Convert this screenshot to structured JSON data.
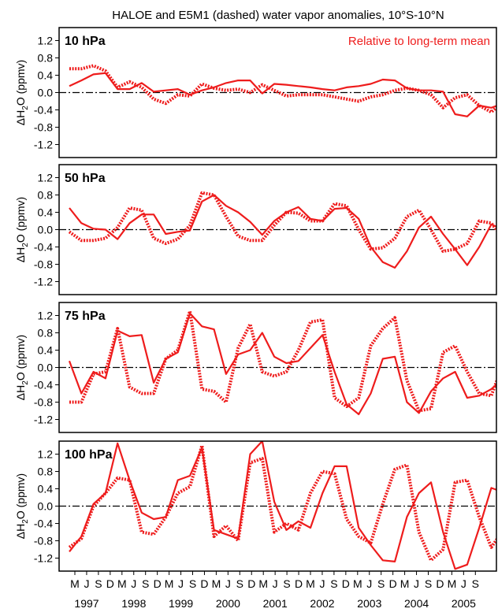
{
  "figure": {
    "title": "HALOE and E5M1 (dashed) water vapor anomalies, 10°S-10°N",
    "annotation": "Relative to long-term mean",
    "ylabel": {
      "prefix": "ΔH",
      "sub": "2",
      "suffix": "O (ppmv)"
    },
    "yticks": [
      "1.2",
      "0.8",
      "0.4",
      "0.0",
      "-0.4",
      "-0.8",
      "-1.2"
    ],
    "month_letters": [
      "M",
      "J",
      "S",
      "D",
      "M",
      "J",
      "S",
      "D",
      "M",
      "J",
      "S",
      "D",
      "M",
      "J",
      "S",
      "D",
      "M",
      "J",
      "S",
      "D",
      "M",
      "J",
      "S",
      "D",
      "M",
      "J",
      "S",
      "D",
      "M",
      "J",
      "S",
      "D",
      "M",
      "J",
      "S"
    ],
    "years": [
      "1997",
      "1998",
      "1999",
      "2000",
      "2001",
      "2002",
      "2003",
      "2004",
      "2005"
    ],
    "colors": {
      "series": "#ee1c1c",
      "zero_line": "#000000",
      "frame": "#000000"
    }
  },
  "chart_data": [
    {
      "type": "line",
      "title": "10 hPa",
      "ylim": [
        -1.5,
        1.5
      ],
      "x_start": "1996-02",
      "x_step_months": 2,
      "series": [
        {
          "style": "solid",
          "values": [
            0.15,
            0.28,
            0.42,
            0.45,
            0.08,
            0.08,
            0.22,
            0.02,
            0.05,
            0.08,
            -0.05,
            0.05,
            0.12,
            0.22,
            0.28,
            0.28,
            -0.02,
            0.2,
            0.18,
            0.15,
            0.12,
            0.08,
            0.05,
            0.12,
            0.15,
            0.2,
            0.3,
            0.28,
            0.1,
            0.05,
            0.05,
            0.02,
            -0.5,
            -0.55,
            -0.3,
            -0.35,
            -0.25,
            -0.2,
            -0.08,
            -0.25,
            -0.28,
            -0.15,
            -0.15,
            -0.2,
            -0.1,
            -0.3,
            -0.2,
            -0.18,
            -0.05,
            -0.4,
            -0.35,
            -0.38,
            -0.4
          ]
        },
        {
          "style": "dashed",
          "values": [
            0.55,
            0.55,
            0.62,
            0.5,
            0.12,
            0.25,
            0.12,
            -0.15,
            -0.25,
            -0.05,
            -0.08,
            0.2,
            0.1,
            0.05,
            0.08,
            0.0,
            0.18,
            0.05,
            -0.08,
            -0.05,
            -0.05,
            -0.05,
            -0.1,
            -0.15,
            -0.2,
            -0.1,
            -0.05,
            0.05,
            0.1,
            0.05,
            -0.05,
            -0.35,
            -0.12,
            -0.05,
            -0.3,
            -0.45,
            -0.2,
            -0.1,
            -0.12,
            -0.08,
            -0.15,
            -0.1,
            -0.2,
            -0.15,
            -0.05,
            -0.15,
            -0.1,
            -0.05,
            -0.2,
            -0.45,
            -0.4,
            -0.35,
            -0.25
          ]
        }
      ]
    },
    {
      "type": "line",
      "title": "50 hPa",
      "ylim": [
        -1.5,
        1.5
      ],
      "x_start": "1996-02",
      "x_step_months": 2,
      "series": [
        {
          "style": "solid",
          "values": [
            0.5,
            0.15,
            0.02,
            0.0,
            -0.22,
            0.15,
            0.35,
            0.35,
            -0.1,
            -0.05,
            -0.02,
            0.65,
            0.8,
            0.55,
            0.4,
            0.18,
            -0.12,
            0.2,
            0.4,
            0.52,
            0.25,
            0.2,
            0.48,
            0.5,
            0.25,
            -0.4,
            -0.75,
            -0.88,
            -0.5,
            0.05,
            0.3,
            -0.1,
            -0.45,
            -0.82,
            -0.4,
            0.12,
            0.0,
            -0.3,
            -0.55,
            -0.7,
            -0.25,
            0.3,
            0.1,
            -0.3,
            -0.35,
            -0.55,
            -0.85,
            -0.15,
            0.2,
            -0.2,
            -0.38,
            -0.38,
            -0.3
          ]
        },
        {
          "style": "dashed",
          "values": [
            -0.05,
            -0.25,
            -0.25,
            -0.2,
            0.05,
            0.5,
            0.45,
            -0.2,
            -0.32,
            -0.22,
            0.1,
            0.85,
            0.8,
            0.3,
            -0.15,
            -0.25,
            -0.25,
            0.1,
            0.4,
            0.38,
            0.2,
            0.2,
            0.6,
            0.55,
            0.0,
            -0.45,
            -0.42,
            -0.2,
            0.3,
            0.45,
            0.0,
            -0.5,
            -0.45,
            -0.32,
            0.2,
            0.15,
            -0.2,
            -0.4,
            -0.3,
            0.2,
            0.7,
            0.35,
            -0.35,
            -0.4,
            -0.35,
            0.0,
            0.3,
            0.1,
            -0.2,
            -0.35,
            -0.4,
            -0.3,
            -0.02
          ]
        }
      ]
    },
    {
      "type": "line",
      "title": "75 hPa",
      "ylim": [
        -1.5,
        1.5
      ],
      "x_start": "1996-02",
      "x_step_months": 2,
      "series": [
        {
          "style": "solid",
          "values": [
            0.15,
            -0.6,
            -0.1,
            -0.25,
            0.85,
            0.72,
            0.75,
            -0.35,
            0.2,
            0.35,
            1.25,
            0.95,
            0.88,
            -0.15,
            0.3,
            0.4,
            0.8,
            0.25,
            0.1,
            0.15,
            0.45,
            0.75,
            -0.1,
            -0.85,
            -1.08,
            -0.6,
            0.2,
            0.25,
            -0.8,
            -1.05,
            -0.55,
            -0.25,
            -0.1,
            -0.7,
            -0.65,
            -0.5,
            -0.25,
            -0.25,
            0.6,
            -0.85,
            -1.2,
            -1.12,
            -0.2,
            0.4,
            -0.25,
            -0.55,
            -0.7,
            -0.25,
            0.15,
            0.5
          ]
        },
        {
          "style": "dashed",
          "values": [
            -0.8,
            -0.8,
            -0.15,
            -0.1,
            0.9,
            -0.45,
            -0.6,
            -0.6,
            0.2,
            0.4,
            1.3,
            -0.5,
            -0.55,
            -0.8,
            0.45,
            1.0,
            -0.1,
            -0.2,
            -0.1,
            0.4,
            1.05,
            1.1,
            -0.7,
            -0.9,
            -0.7,
            0.5,
            0.9,
            1.15,
            -0.3,
            -1.0,
            -0.95,
            0.35,
            0.5,
            -0.1,
            -0.6,
            -0.65,
            0.1,
            0.6,
            0.7,
            0.5,
            -0.85,
            -0.8,
            0.15,
            0.6,
            0.1,
            -0.55,
            -0.5,
            -0.05,
            0.3,
            0.7,
            0.6
          ]
        }
      ]
    },
    {
      "type": "line",
      "title": "100 hPa",
      "ylim": [
        -1.5,
        1.5
      ],
      "x_start": "1996-02",
      "x_step_months": 2,
      "series": [
        {
          "style": "solid",
          "values": [
            -1.05,
            -0.7,
            0.05,
            0.3,
            1.45,
            0.6,
            -0.15,
            -0.3,
            -0.25,
            0.6,
            0.7,
            1.35,
            -0.55,
            -0.65,
            -0.75,
            1.2,
            1.5,
            0.1,
            -0.55,
            -0.35,
            -0.5,
            0.3,
            0.92,
            0.92,
            -0.5,
            -0.9,
            -1.25,
            -1.28,
            -0.25,
            0.3,
            0.55,
            -0.6,
            -1.45,
            -1.35,
            -0.5,
            0.42,
            0.32,
            -0.45,
            -1.35,
            -0.95,
            -0.45,
            0.25,
            0.25,
            -0.85,
            -1.45,
            -0.65,
            0.8,
            0.15,
            -0.85,
            -0.6,
            -0.8,
            0.35,
            0.9,
            0.1
          ]
        },
        {
          "style": "dashed",
          "values": [
            -0.95,
            -0.75,
            0.0,
            0.3,
            0.65,
            0.6,
            -0.6,
            -0.65,
            -0.25,
            0.3,
            0.45,
            1.4,
            -0.7,
            -0.45,
            -0.8,
            1.0,
            1.1,
            -0.6,
            -0.4,
            -0.55,
            0.3,
            0.8,
            0.75,
            -0.3,
            -0.7,
            -0.85,
            0.05,
            0.85,
            0.95,
            -0.6,
            -1.25,
            -1.0,
            0.55,
            0.6,
            -0.25,
            -0.95,
            -0.55,
            0.8,
            1.05,
            -0.5,
            -0.95,
            -0.9,
            0.55,
            0.6,
            -0.45,
            -0.5,
            -0.95,
            -0.8,
            0.6,
            1.3,
            0.1
          ]
        }
      ]
    }
  ]
}
